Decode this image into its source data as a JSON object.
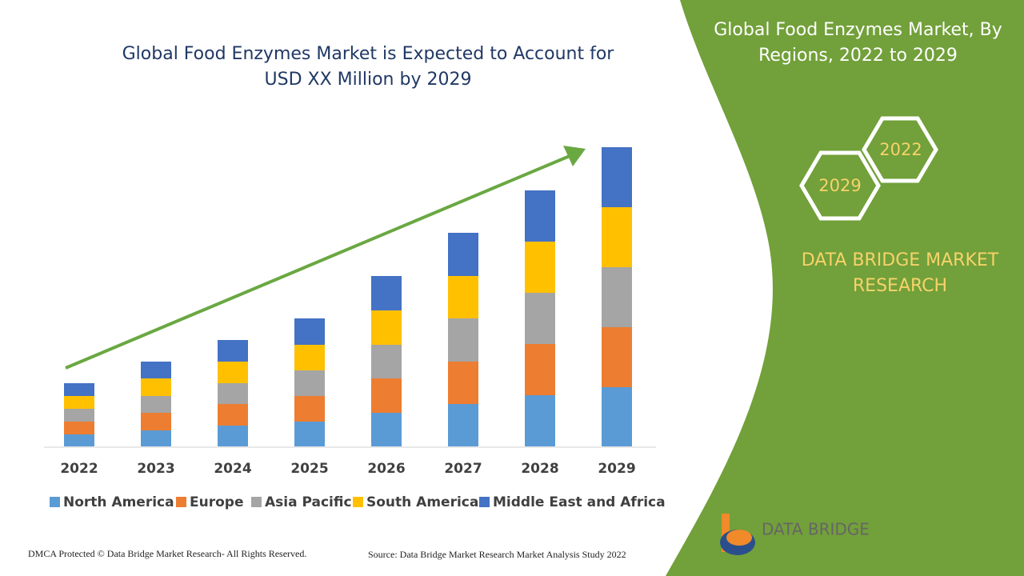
{
  "chart_data": {
    "type": "bar",
    "stacked": true,
    "title": "Global Food Enzymes Market is Expected to Account for USD XX Million by 2029",
    "categories": [
      "2022",
      "2023",
      "2024",
      "2025",
      "2026",
      "2027",
      "2028",
      "2029"
    ],
    "series": [
      {
        "name": "North America",
        "color": "#5b9bd5",
        "values": [
          15,
          20,
          26,
          31,
          42,
          53,
          64,
          74
        ]
      },
      {
        "name": "Europe",
        "color": "#ed7d31",
        "values": [
          16,
          22,
          27,
          32,
          43,
          53,
          64,
          75
        ]
      },
      {
        "name": "Asia Pacific",
        "color": "#a5a5a5",
        "values": [
          16,
          21,
          26,
          32,
          42,
          54,
          64,
          75
        ]
      },
      {
        "name": "South America",
        "color": "#ffc000",
        "values": [
          16,
          22,
          27,
          32,
          43,
          53,
          64,
          75
        ]
      },
      {
        "name": "Middle East and Africa",
        "color": "#4472c4",
        "values": [
          16,
          21,
          27,
          33,
          43,
          54,
          64,
          75
        ]
      }
    ],
    "ylim": [
      0,
      400
    ]
  },
  "panel": {
    "title": "Global Food Enzymes Market, By Regions, 2022 to 2029",
    "hex_labels": [
      "2022",
      "2029"
    ],
    "brand": "DATA BRIDGE MARKET RESEARCH"
  },
  "logo": {
    "text": "DATA BRIDGE"
  },
  "footer": {
    "left": "DMCA Protected © Data Bridge Market Research- All Rights Reserved.",
    "right": "Source: Data Bridge Market Research Market Analysis Study 2022"
  }
}
